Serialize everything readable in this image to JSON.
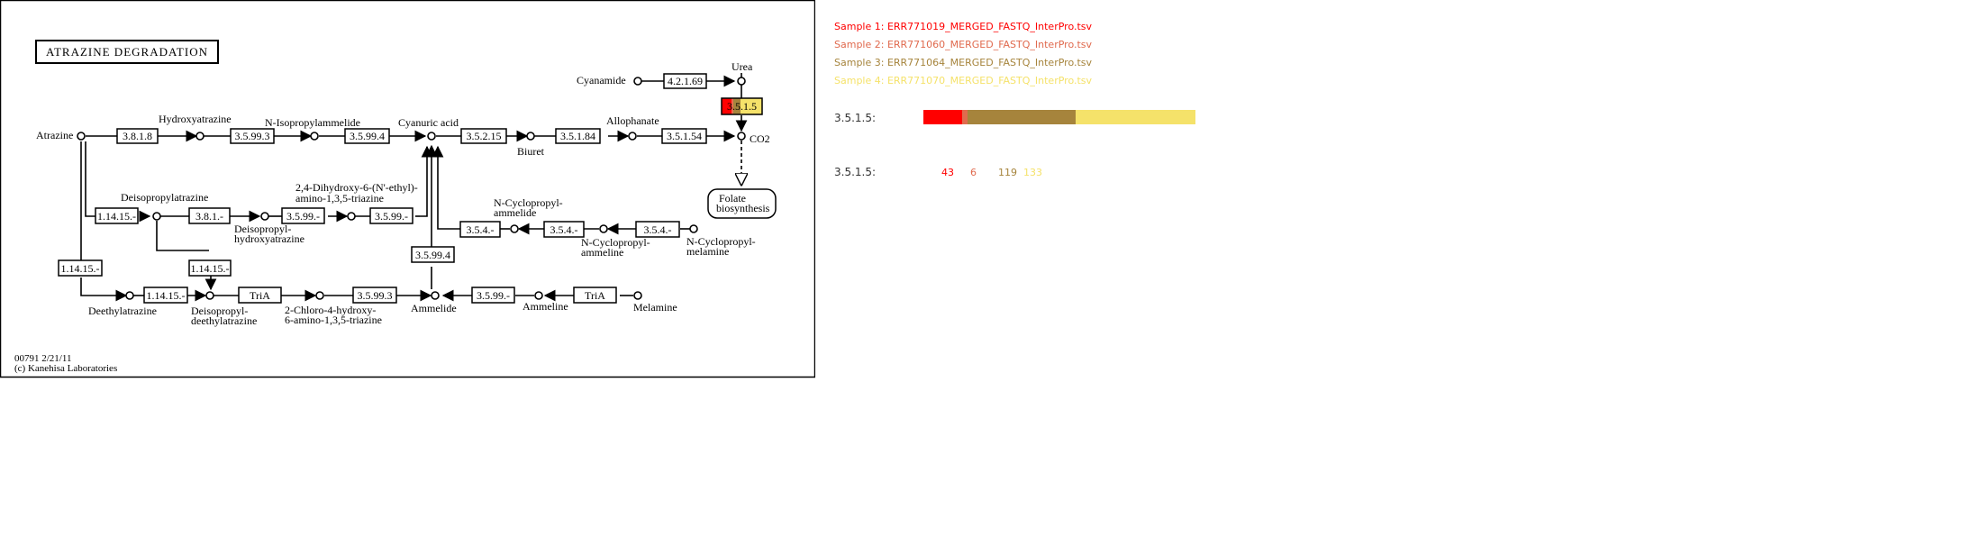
{
  "map": {
    "title": "ATRAZINE DEGRADATION",
    "map_id": "00791 2/21/11",
    "copyright": "(c) Kanehisa Laboratories"
  },
  "compounds": {
    "atrazine": "Atrazine",
    "hydroxyatrazine": "Hydroxyatrazine",
    "n_isopropylammelide": "N-Isopropylammelide",
    "cyanuric_acid": "Cyanuric acid",
    "biuret": "Biuret",
    "allophanate": "Allophanate",
    "co2": "CO2",
    "cyanamide": "Cyanamide",
    "urea": "Urea",
    "deisopropylatrazine": "Deisopropylatrazine",
    "dihydroxy_1": "2,4-Dihydroxy-6-(N'-ethyl)-",
    "dihydroxy_2": "amino-1,3,5-triazine",
    "deisopropylhydroxyatrazine_1": "Deisopropyl-",
    "deisopropylhydroxyatrazine_2": "hydroxyatrazine",
    "n_cyclopropylammelide_1": "N-Cyclopropyl-",
    "n_cyclopropylammelide_2": "ammelide",
    "n_cyclopropylammeline_1": "N-Cyclopropyl-",
    "n_cyclopropylammeline_2": "ammeline",
    "n_cyclopropylmelamine_1": "N-Cyclopropyl-",
    "n_cyclopropylmelamine_2": "melamine",
    "folate_1": "Folate",
    "folate_2": "biosynthesis",
    "deethylatrazine": "Deethylatrazine",
    "deisopropyldeethylatrazine_1": "Deisopropyl-",
    "deisopropyldeethylatrazine_2": "deethylatrazine",
    "chloro_1": "2-Chloro-4-hydroxy-",
    "chloro_2": "6-amino-1,3,5-triazine",
    "ammelide": "Ammelide",
    "ammeline": "Ammeline",
    "melamine": "Melamine"
  },
  "enzymes": {
    "e_3_8_1_8": "3.8.1.8",
    "e_3_5_99_3_top": "3.5.99.3",
    "e_3_5_99_4_top": "3.5.99.4",
    "e_3_5_2_15": "3.5.2.15",
    "e_3_5_1_84": "3.5.1.84",
    "e_3_5_1_54": "3.5.1.54",
    "e_4_2_1_69": "4.2.1.69",
    "e_3_5_1_5": "3.5.1.5",
    "e_1_14_15_mid": "1.14.15.-",
    "e_3_8_1": "3.8.1.-",
    "e_3_5_99_a": "3.5.99.-",
    "e_3_5_99_b": "3.5.99.-",
    "e_3_5_4_a": "3.5.4.-",
    "e_3_5_4_b": "3.5.4.-",
    "e_3_5_4_c": "3.5.4.-",
    "e_3_5_99_4_mid": "3.5.99.4",
    "e_1_14_15_left": "1.14.15.-",
    "e_1_14_15_mid2": "1.14.15.-",
    "e_1_14_15_bot": "1.14.15.-",
    "e_tria_1": "TriA",
    "e_3_5_99_3_bot": "3.5.99.3",
    "e_3_5_99_bot": "3.5.99.-",
    "e_tria_2": "TriA"
  },
  "highlight": {
    "enzyme": "3.5.1.5",
    "colors": [
      "#ff0000",
      "#ec6b4f",
      "#a6843c",
      "#f5e26a"
    ]
  },
  "legend": {
    "samples": [
      {
        "label": "Sample 1: ERR771019_MERGED_FASTQ_InterPro.tsv",
        "color": "#ff0000"
      },
      {
        "label": "Sample 2: ERR771060_MERGED_FASTQ_InterPro.tsv",
        "color": "#e06a4e"
      },
      {
        "label": "Sample 3: ERR771064_MERGED_FASTQ_InterPro.tsv",
        "color": "#a6843c"
      },
      {
        "label": "Sample 4: ERR771070_MERGED_FASTQ_InterPro.tsv",
        "color": "#f5e26a"
      }
    ],
    "bar_row_label": "3.5.1.5:",
    "count_row_label": "3.5.1.5:",
    "counts": [
      "43",
      "6",
      "119",
      "133"
    ],
    "count_colors": [
      "#ff0000",
      "#e06a4e",
      "#a6843c",
      "#f5e26a"
    ]
  }
}
